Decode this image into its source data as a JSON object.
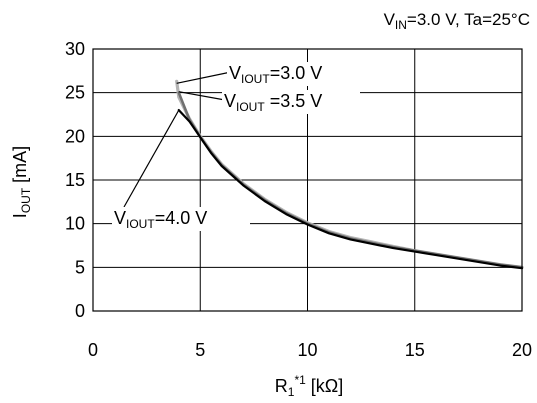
{
  "chart_data": {
    "type": "line",
    "conditions": {
      "prefix": "V",
      "sub": "IN",
      "rest": "=3.0 V, Ta=25°C"
    },
    "xaxis": {
      "title_main": "R",
      "title_sub": "1",
      "title_sup": "*1",
      "title_unit": " [kΩ]",
      "min": 0,
      "max": 20,
      "ticks": [
        0,
        5,
        10,
        15,
        20
      ],
      "tick_labels": [
        "0",
        "5",
        "10",
        "15",
        "20"
      ]
    },
    "yaxis": {
      "title_main": "I",
      "title_sub": "OUT",
      "title_unit": " [mA]",
      "min": 0,
      "max": 30,
      "ticks": [
        0,
        5,
        10,
        15,
        20,
        25,
        30
      ],
      "tick_labels": [
        "0",
        "5",
        "10",
        "15",
        "20",
        "25",
        "30"
      ]
    },
    "grid": true,
    "series": [
      {
        "name": "V_IOUT=3.0 V",
        "label_main": "V",
        "label_sub": "IOUT",
        "label_rest": "=3.0 V",
        "color": "#b4b4b4",
        "x": [
          3.9,
          4.0,
          4.5,
          5.0,
          5.5,
          6.0,
          7.0,
          8.0,
          9.0,
          10.0,
          11.0,
          12.0,
          13.0,
          14.0,
          15.0,
          16.0,
          17.0,
          18.0,
          19.0,
          20.0
        ],
        "y": [
          26.3,
          24.5,
          22.0,
          20.0,
          18.3,
          16.8,
          14.6,
          12.8,
          11.3,
          10.1,
          9.1,
          8.4,
          7.9,
          7.4,
          6.9,
          6.5,
          6.1,
          5.7,
          5.3,
          5.0
        ]
      },
      {
        "name": "V_IOUT =3.5 V",
        "label_main": "V",
        "label_sub": "IOUT",
        "label_rest": " =3.5 V",
        "color": "#707070",
        "x": [
          4.0,
          4.5,
          5.0,
          5.5,
          6.0,
          7.0,
          8.0,
          9.0,
          10.0,
          11.0,
          12.0,
          13.0,
          14.0,
          15.0,
          16.0,
          17.0,
          18.0,
          19.0,
          20.0
        ],
        "y": [
          25.0,
          21.9,
          19.9,
          18.2,
          16.7,
          14.5,
          12.7,
          11.2,
          10.0,
          9.0,
          8.3,
          7.8,
          7.3,
          6.9,
          6.5,
          6.1,
          5.7,
          5.3,
          5.0
        ]
      },
      {
        "name": "V_IOUT=4.0 V",
        "label_main": "V",
        "label_sub": "IOUT",
        "label_rest": "=4.0 V",
        "color": "#000000",
        "x": [
          4.0,
          4.5,
          5.0,
          5.5,
          6.0,
          7.0,
          8.0,
          9.0,
          10.0,
          11.0,
          12.0,
          13.0,
          14.0,
          15.0,
          16.0,
          17.0,
          18.0,
          19.0,
          20.0
        ],
        "y": [
          23.0,
          21.7,
          19.9,
          18.1,
          16.6,
          14.4,
          12.6,
          11.1,
          9.9,
          8.9,
          8.2,
          7.7,
          7.2,
          6.8,
          6.4,
          6.0,
          5.6,
          5.2,
          4.9
        ]
      }
    ]
  }
}
